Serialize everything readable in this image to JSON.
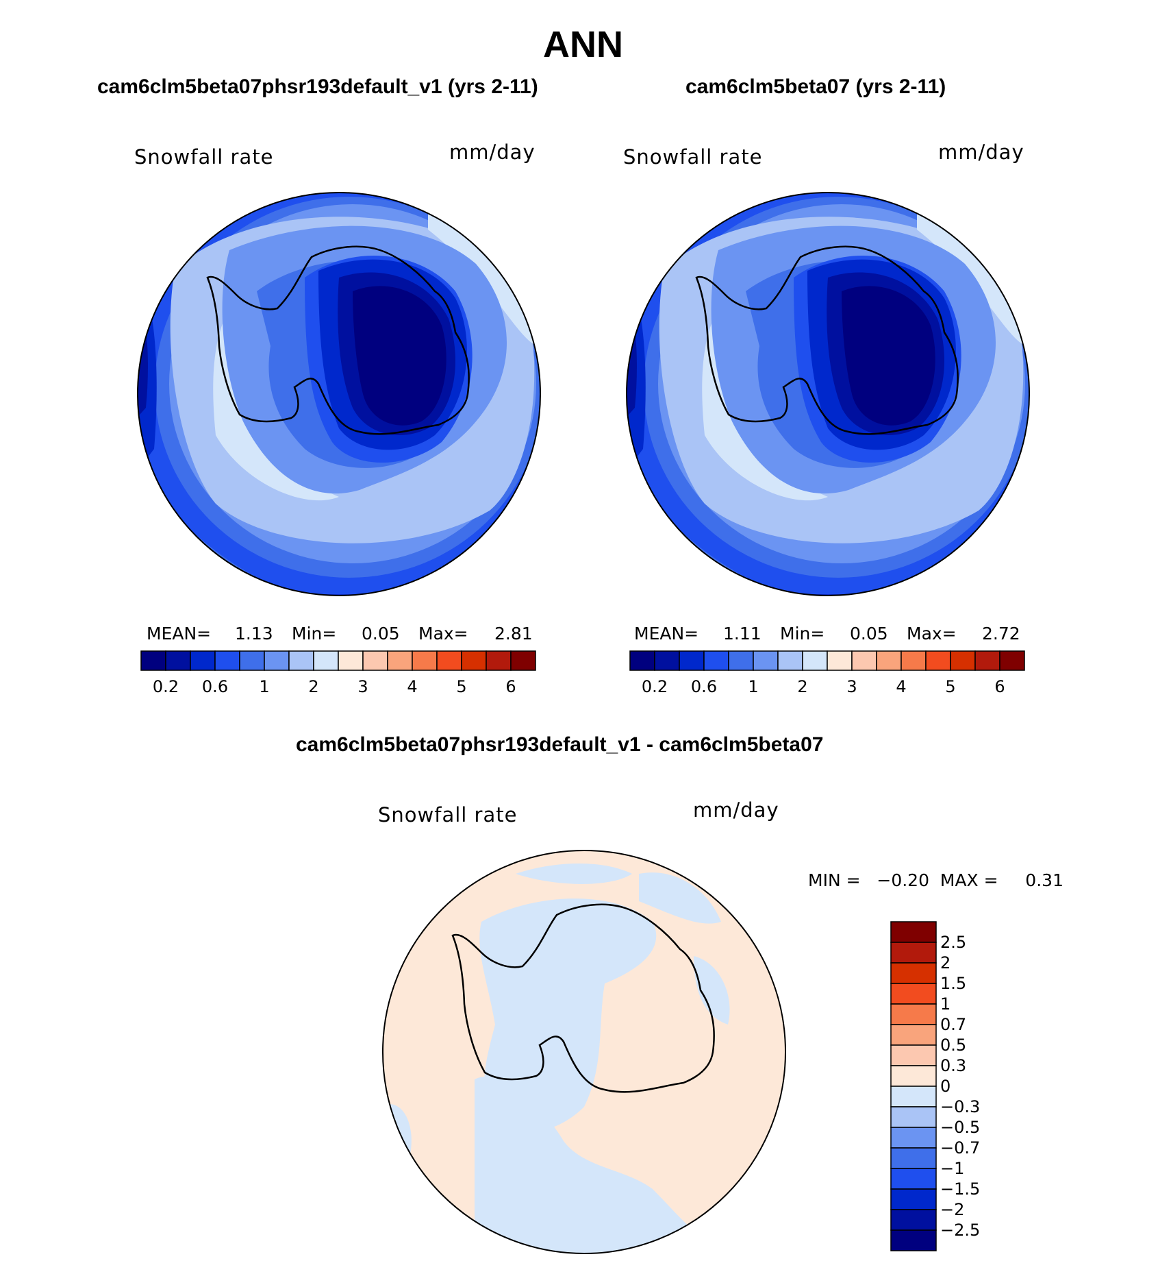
{
  "chart_data": {
    "type": "heatmap",
    "title": "ANN",
    "colors": {
      "seq_levels": [
        "#00007f",
        "#00109f",
        "#0028cc",
        "#1f4fee",
        "#3f6fea",
        "#6b94f2",
        "#aac4f6",
        "#d4e6fa",
        "#fde8d8",
        "#fcc8b0",
        "#f9a47c",
        "#f67a4a",
        "#f24c1f",
        "#d63000",
        "#b21a0c",
        "#7f0000"
      ],
      "diff_levels_top_to_bottom": [
        "#7f0000",
        "#b21a0c",
        "#d63000",
        "#f24c1f",
        "#f67a4a",
        "#f9a47c",
        "#fcc8b0",
        "#fde8d8",
        "#d4e6fa",
        "#aac4f6",
        "#6b94f2",
        "#3f6fea",
        "#1f4fee",
        "#0028cc",
        "#00109f",
        "#00007f"
      ]
    },
    "panels": [
      {
        "title": "cam6clm5beta07phsr193default_v1 (yrs 2-11)",
        "variable": "Snowfall rate",
        "units": "mm/day",
        "mean_label": "MEAN=",
        "mean": "1.13",
        "min_label": "Min=",
        "min": "0.05",
        "max_label": "Max=",
        "max": "2.81",
        "colorbar_ticks": [
          "0.2",
          "0.6",
          "1",
          "2",
          "3",
          "4",
          "5",
          "6"
        ]
      },
      {
        "title": "cam6clm5beta07 (yrs 2-11)",
        "variable": "Snowfall rate",
        "units": "mm/day",
        "mean_label": "MEAN=",
        "mean": "1.11",
        "min_label": "Min=",
        "min": "0.05",
        "max_label": "Max=",
        "max": "2.72",
        "colorbar_ticks": [
          "0.2",
          "0.6",
          "1",
          "2",
          "3",
          "4",
          "5",
          "6"
        ]
      },
      {
        "title": "cam6clm5beta07phsr193default_v1 - cam6clm5beta07",
        "variable": "Snowfall rate",
        "units": "mm/day",
        "minmax_text": "MIN =   −0.20  MAX =     0.31",
        "colorbar_ticks": [
          "2.5",
          "2",
          "1.5",
          "1",
          "0.7",
          "0.5",
          "0.3",
          "0",
          "−0.3",
          "−0.5",
          "−0.7",
          "−1",
          "−1.5",
          "−2",
          "−2.5"
        ]
      }
    ]
  }
}
